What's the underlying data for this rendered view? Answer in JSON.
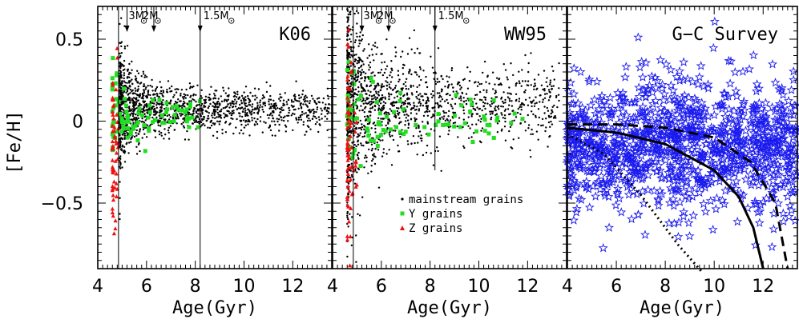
{
  "colors": {
    "mainstream": "#000000",
    "y_grains": "#22dd22",
    "z_grains": "#ee1111",
    "survey_stars": "#1a1aee"
  },
  "chart_data": [
    {
      "type": "scatter",
      "title": "K06",
      "xlabel": "Age(Gyr)",
      "ylabel": "[Fe/H]",
      "xlim": [
        4,
        13.6
      ],
      "ylim": [
        -0.9,
        0.7
      ],
      "xticks": [
        "4",
        "6",
        "8",
        "10",
        "12"
      ],
      "yticks": [
        "0.5",
        "0",
        "−0.5"
      ],
      "vlines": [
        4.85,
        8.2
      ],
      "mass_markers": [
        {
          "label": "3M",
          "x": 5.2
        },
        {
          "label": "2M",
          "x": 6.3
        },
        {
          "label": "1.5M",
          "x": 8.2
        }
      ],
      "series": [
        {
          "name": "mainstream grains",
          "marker": "dot",
          "count": 1500,
          "x_range": [
            4.9,
            13.5
          ],
          "y_center": 0.07,
          "y_spread": 0.06
        },
        {
          "name": "Y grains",
          "marker": "square",
          "count": 90,
          "x_range": [
            4.6,
            8.2
          ],
          "y_center": 0.02,
          "y_spread": 0.05
        },
        {
          "name": "Z grains",
          "marker": "triangle",
          "count": 60,
          "x_range": [
            4.6,
            4.85
          ],
          "y_center": -0.12,
          "y_spread": 0.08
        }
      ]
    },
    {
      "type": "scatter",
      "title": "WW95",
      "xlabel": "Age(Gyr)",
      "xlim": [
        4,
        13.6
      ],
      "ylim": [
        -0.9,
        0.7
      ],
      "xticks": [
        "4",
        "6",
        "8",
        "10",
        "12"
      ],
      "vlines": [
        4.85
      ],
      "vline_partial": {
        "x": 8.2,
        "y_bottom": -0.3
      },
      "mass_markers": [
        {
          "label": "3M",
          "x": 5.2
        },
        {
          "label": "2M",
          "x": 6.3
        },
        {
          "label": "1.5M",
          "x": 8.2
        }
      ],
      "series": [
        {
          "name": "mainstream grains",
          "marker": "dot",
          "count": 1500,
          "x_range": [
            4.6,
            13.3
          ],
          "y_center": 0.1,
          "y_spread": 0.12
        },
        {
          "name": "Y grains",
          "marker": "square",
          "count": 90,
          "x_range": [
            4.6,
            11.8
          ],
          "y_center": 0.0,
          "y_spread": 0.07
        },
        {
          "name": "Z grains",
          "marker": "triangle",
          "count": 70,
          "x_range": [
            4.6,
            5.0
          ],
          "y_center": -0.2,
          "y_spread": 0.12
        }
      ],
      "legend": {
        "position": "lower-right",
        "entries": [
          "mainstream grains",
          "Y grains",
          "Z grains"
        ]
      }
    },
    {
      "type": "scatter",
      "title": "G−C Survey",
      "xlabel": "Age(Gyr)",
      "xlim": [
        4,
        13.4
      ],
      "ylim": [
        -0.9,
        0.7
      ],
      "xticks": [
        "4",
        "6",
        "8",
        "10",
        "12"
      ],
      "series": [
        {
          "name": "",
          "marker": "star",
          "count": 1200,
          "x_range": [
            4.0,
            13.4
          ],
          "y_center": -0.15,
          "y_spread": 0.2
        }
      ],
      "curves": [
        {
          "style": "solid",
          "points": [
            [
              4,
              -0.04
            ],
            [
              6,
              -0.07
            ],
            [
              8,
              -0.14
            ],
            [
              10,
              -0.3
            ],
            [
              11,
              -0.46
            ],
            [
              11.6,
              -0.65
            ],
            [
              12,
              -0.9
            ]
          ]
        },
        {
          "style": "dashed",
          "points": [
            [
              4,
              -0.02
            ],
            [
              6,
              -0.02
            ],
            [
              8,
              -0.04
            ],
            [
              10,
              -0.1
            ],
            [
              11.5,
              -0.25
            ],
            [
              12.5,
              -0.5
            ],
            [
              13,
              -0.9
            ]
          ]
        },
        {
          "style": "dotted",
          "points": [
            [
              4,
              -0.08
            ],
            [
              5.5,
              -0.2
            ],
            [
              7,
              -0.45
            ],
            [
              8.5,
              -0.75
            ],
            [
              9.5,
              -0.92
            ]
          ]
        }
      ]
    }
  ]
}
